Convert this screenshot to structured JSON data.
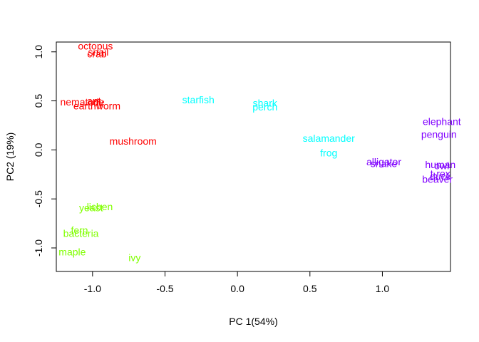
{
  "chart_data": {
    "type": "scatter",
    "xlabel": "PC 1(54%)",
    "ylabel": "PC2 (19%)",
    "xlim": [
      -1.25,
      1.47
    ],
    "ylim": [
      -1.24,
      1.1
    ],
    "x_ticks": [
      -1.0,
      -0.5,
      0.0,
      0.5,
      1.0
    ],
    "x_tick_labels": [
      "-1.0",
      "-0.5",
      "0.0",
      "0.5",
      "1.0"
    ],
    "y_ticks": [
      -1.0,
      -0.5,
      0.0,
      0.5,
      1.0
    ],
    "y_tick_labels": [
      "-1.0",
      "-0.5",
      "0.0",
      "0.5",
      "1.0"
    ],
    "grid": false,
    "colors": {
      "group1": "#ff0000",
      "group2": "#00ffff",
      "group3": "#80ff00",
      "group4": "#8000ff"
    },
    "points": [
      {
        "label": "octopus",
        "x": -0.98,
        "y": 1.06,
        "group": "group1"
      },
      {
        "label": "snail",
        "x": -0.96,
        "y": 1.0,
        "group": "group1"
      },
      {
        "label": "crab",
        "x": -0.97,
        "y": 0.98,
        "group": "group1"
      },
      {
        "label": "nematode",
        "x": -1.07,
        "y": 0.49,
        "group": "group1"
      },
      {
        "label": "ant",
        "x": -0.99,
        "y": 0.5,
        "group": "group1"
      },
      {
        "label": "fly",
        "x": -0.96,
        "y": 0.48,
        "group": "group1"
      },
      {
        "label": "earthworm",
        "x": -0.97,
        "y": 0.45,
        "group": "group1"
      },
      {
        "label": "mushroom",
        "x": -0.72,
        "y": 0.09,
        "group": "group1"
      },
      {
        "label": "starfish",
        "x": -0.27,
        "y": 0.51,
        "group": "group2"
      },
      {
        "label": "shark",
        "x": 0.19,
        "y": 0.48,
        "group": "group2"
      },
      {
        "label": "perch",
        "x": 0.19,
        "y": 0.44,
        "group": "group2"
      },
      {
        "label": "salamander",
        "x": 0.63,
        "y": 0.12,
        "group": "group2"
      },
      {
        "label": "frog",
        "x": 0.63,
        "y": -0.03,
        "group": "group2"
      },
      {
        "label": "yeast",
        "x": -1.01,
        "y": -0.59,
        "group": "group3"
      },
      {
        "label": "lichen",
        "x": -0.95,
        "y": -0.58,
        "group": "group3"
      },
      {
        "label": "fern",
        "x": -1.09,
        "y": -0.82,
        "group": "group3"
      },
      {
        "label": "bacteria",
        "x": -1.08,
        "y": -0.85,
        "group": "group3"
      },
      {
        "label": "maple",
        "x": -1.14,
        "y": -1.04,
        "group": "group3"
      },
      {
        "label": "ivy",
        "x": -0.71,
        "y": -1.1,
        "group": "group3"
      },
      {
        "label": "alligator",
        "x": 1.01,
        "y": -0.12,
        "group": "group4"
      },
      {
        "label": "snake",
        "x": 1.01,
        "y": -0.14,
        "group": "group4"
      },
      {
        "label": "elephant",
        "x": 1.41,
        "y": 0.29,
        "group": "group4"
      },
      {
        "label": "penguin",
        "x": 1.39,
        "y": 0.16,
        "group": "group4"
      },
      {
        "label": "human",
        "x": 1.4,
        "y": -0.15,
        "group": "group4"
      },
      {
        "label": "owl",
        "x": 1.41,
        "y": -0.16,
        "group": "group4"
      },
      {
        "label": "t-rex",
        "x": 1.4,
        "y": -0.24,
        "group": "group4"
      },
      {
        "label": "duck",
        "x": 1.4,
        "y": -0.27,
        "group": "group4"
      },
      {
        "label": "beaver",
        "x": 1.38,
        "y": -0.3,
        "group": "group4"
      }
    ]
  }
}
